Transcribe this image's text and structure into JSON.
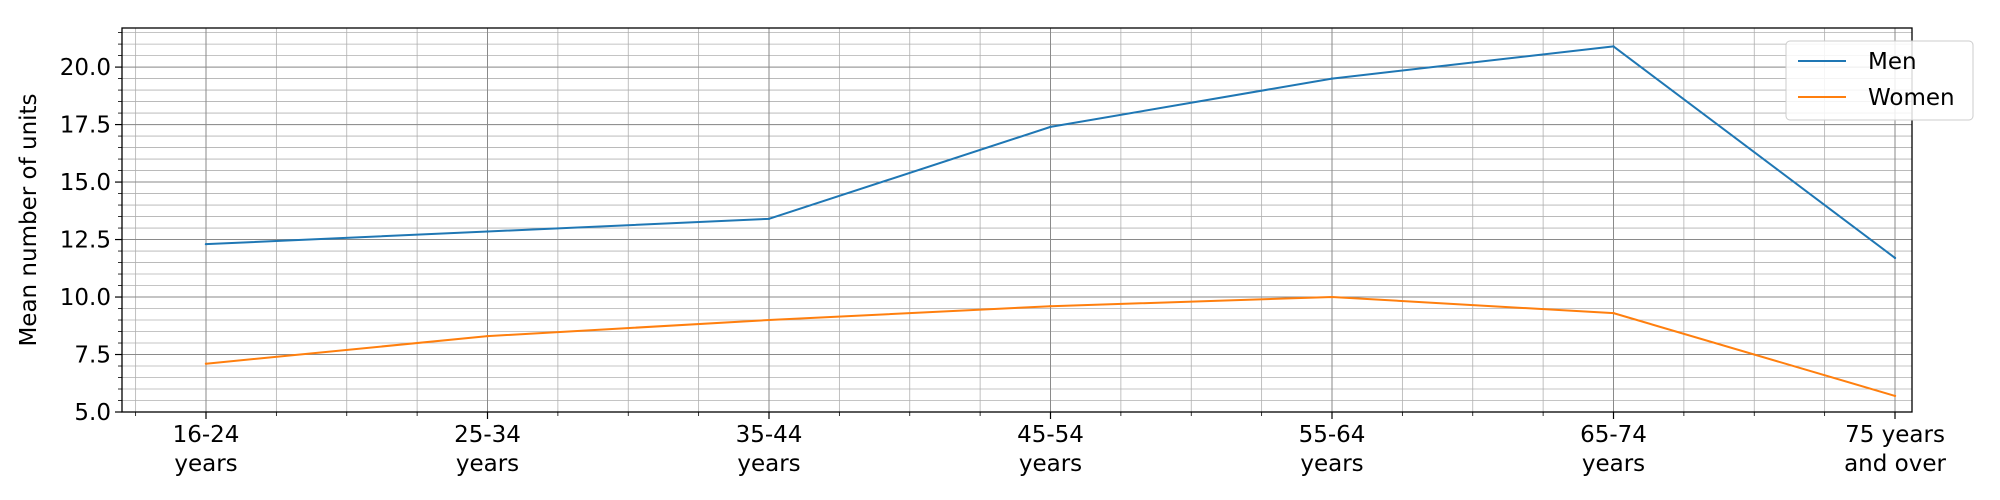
{
  "chart_data": {
    "type": "line",
    "categories": [
      [
        "16-24",
        "years"
      ],
      [
        "25-34",
        "years"
      ],
      [
        "35-44",
        "years"
      ],
      [
        "45-54",
        "years"
      ],
      [
        "55-64",
        "years"
      ],
      [
        "65-74",
        "years"
      ],
      [
        "75 years",
        "and over"
      ]
    ],
    "series": [
      {
        "name": "Men",
        "color": "#1f77b4",
        "values": [
          12.3,
          12.85,
          13.4,
          17.4,
          19.5,
          20.9,
          11.7
        ]
      },
      {
        "name": "Women",
        "color": "#ff7f0e",
        "values": [
          7.1,
          8.3,
          9.0,
          9.6,
          10.0,
          9.3,
          5.7
        ]
      }
    ],
    "title": "",
    "xlabel": "",
    "ylabel": "Mean number of units",
    "ylim": [
      5.0,
      21.7
    ],
    "yticks": [
      "5.0",
      "7.5",
      "10.0",
      "12.5",
      "15.0",
      "17.5",
      "20.0"
    ],
    "grid": true,
    "legend_position": "top-right"
  }
}
